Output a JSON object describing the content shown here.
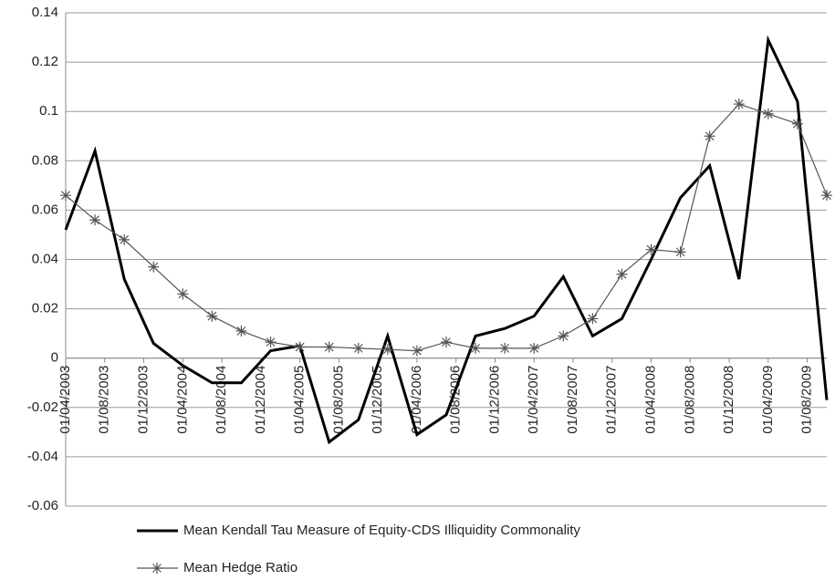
{
  "chart_data": {
    "type": "line",
    "x": [
      "01/04/2003",
      "01/07/2003",
      "01/10/2003",
      "01/01/2004",
      "01/04/2004",
      "01/07/2004",
      "01/10/2004",
      "01/01/2005",
      "01/04/2005",
      "01/07/2005",
      "01/10/2005",
      "01/01/2006",
      "01/04/2006",
      "01/07/2006",
      "01/10/2006",
      "01/01/2007",
      "01/04/2007",
      "01/07/2007",
      "01/10/2007",
      "01/01/2008",
      "01/04/2008",
      "01/07/2008",
      "01/10/2008",
      "01/01/2009",
      "01/04/2009",
      "01/07/2009",
      "01/10/2009"
    ],
    "series": [
      {
        "name": "Mean Kendall Tau Measure of Equity-CDS  Illiquidity Commonality",
        "color": "#000000",
        "marker": "none",
        "values": [
          0.052,
          0.084,
          0.032,
          0.006,
          -0.003,
          -0.01,
          -0.01,
          0.003,
          0.005,
          -0.034,
          -0.025,
          0.009,
          -0.031,
          -0.023,
          0.009,
          0.012,
          0.017,
          0.033,
          0.009,
          0.016,
          0.04,
          0.065,
          0.078,
          0.032,
          0.129,
          0.104,
          -0.017
        ]
      },
      {
        "name": "Mean Hedge Ratio",
        "color": "#555555",
        "marker": "asterisk",
        "values": [
          0.066,
          0.056,
          0.048,
          0.037,
          0.026,
          0.017,
          0.011,
          0.0065,
          0.0045,
          0.0045,
          0.004,
          0.0035,
          0.003,
          0.0065,
          0.004,
          0.004,
          0.004,
          0.009,
          0.016,
          0.034,
          0.044,
          0.043,
          0.09,
          0.103,
          0.099,
          0.095,
          0.066
        ]
      }
    ],
    "xlim": [
      "01/04/2003",
      "01/10/2009"
    ],
    "xticks": [
      "01/04/2003",
      "01/08/2003",
      "01/12/2003",
      "01/04/2004",
      "01/08/2004",
      "01/12/2004",
      "01/04/2005",
      "01/08/2005",
      "01/12/2005",
      "01/04/2006",
      "01/08/2006",
      "01/12/2006",
      "01/04/2007",
      "01/08/2007",
      "01/12/2007",
      "01/04/2008",
      "01/08/2008",
      "01/12/2008",
      "01/04/2009",
      "01/08/2009"
    ],
    "ylim": [
      -0.06,
      0.14
    ],
    "yticks": [
      -0.06,
      -0.04,
      -0.02,
      0,
      0.02,
      0.04,
      0.06,
      0.08,
      0.1,
      0.12,
      0.14
    ],
    "grid": true
  }
}
